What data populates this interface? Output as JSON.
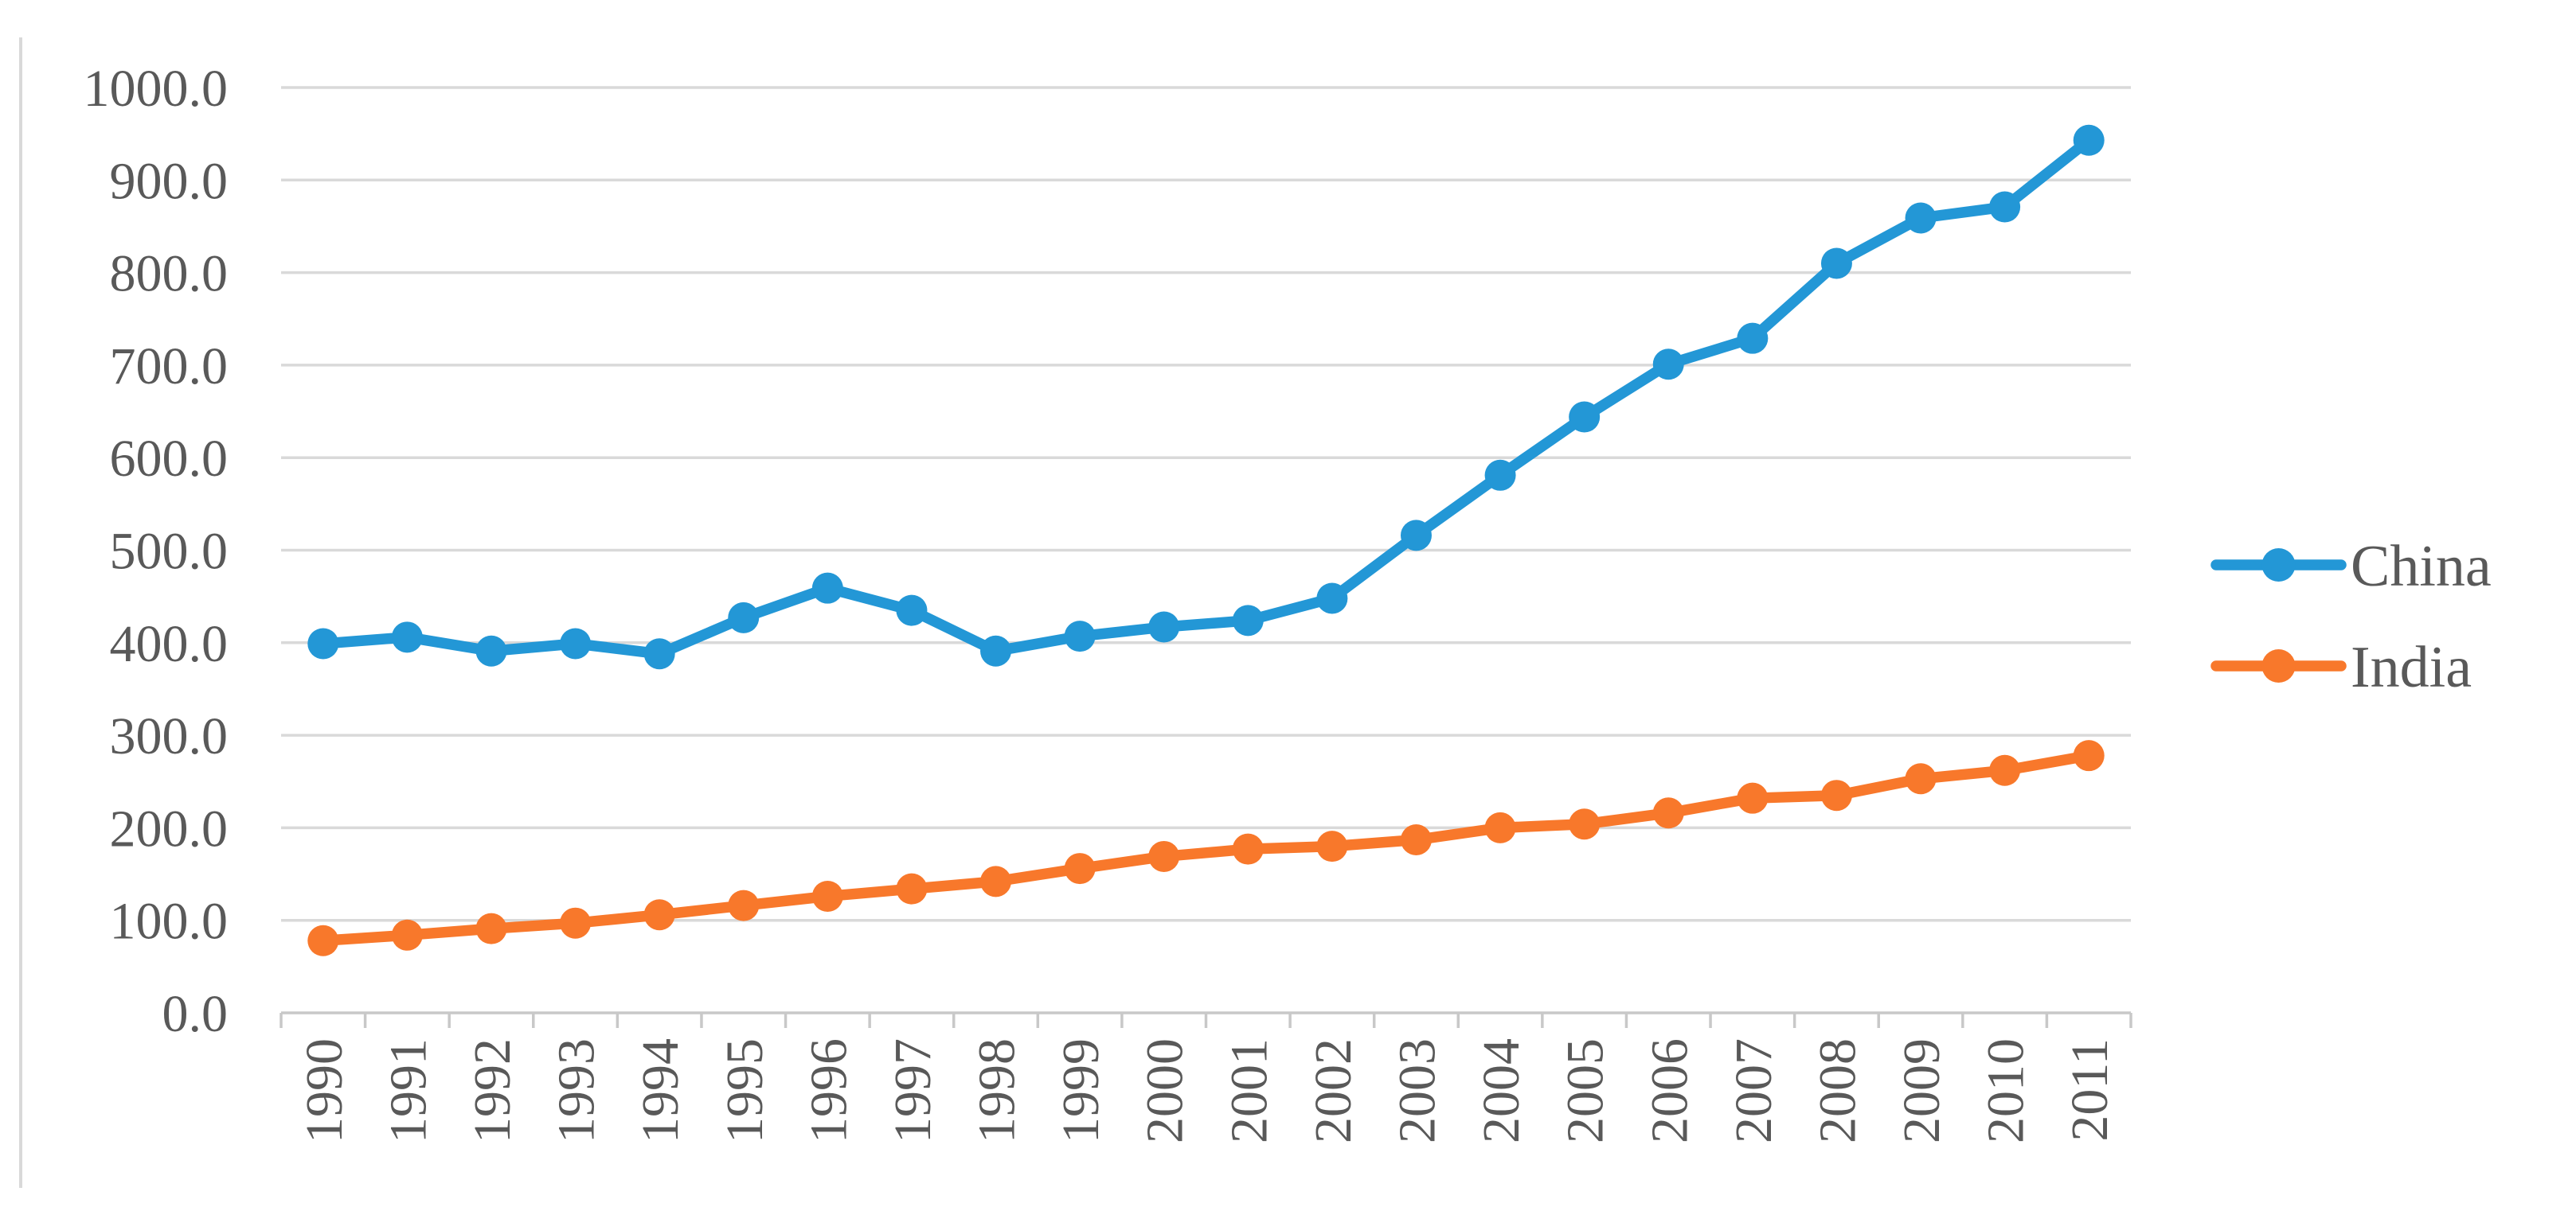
{
  "chart_data": {
    "type": "line",
    "categories": [
      "1990",
      "1991",
      "1992",
      "1993",
      "1994",
      "1995",
      "1996",
      "1997",
      "1998",
      "1999",
      "2000",
      "2001",
      "2002",
      "2003",
      "2004",
      "2005",
      "2006",
      "2007",
      "2008",
      "2009",
      "2010",
      "2011"
    ],
    "series": [
      {
        "name": "China",
        "color": "#2397D6",
        "values": [
          399,
          406,
          391,
          399,
          388,
          427,
          459,
          435,
          391,
          407,
          417,
          424,
          448,
          516,
          581,
          644,
          701,
          729,
          810,
          859,
          871,
          943
        ]
      },
      {
        "name": "India",
        "color": "#F8782B",
        "values": [
          78,
          84,
          91,
          97,
          106,
          116,
          126,
          134,
          142,
          156,
          169,
          177,
          180,
          187,
          200,
          204,
          216,
          232,
          235,
          253,
          262,
          278
        ]
      }
    ],
    "title": "",
    "xlabel": "",
    "ylabel": "",
    "ylim": [
      0,
      1000
    ],
    "ytick_step": 100,
    "ytick_labels": [
      "0.0",
      "100.0",
      "200.0",
      "300.0",
      "400.0",
      "500.0",
      "600.0",
      "700.0",
      "800.0",
      "900.0",
      "1000.0"
    ],
    "grid": true,
    "legend_position": "right"
  },
  "legend": {
    "items": [
      {
        "label": "China",
        "color": "#2397D6"
      },
      {
        "label": "India",
        "color": "#F8782B"
      }
    ]
  },
  "styles": {
    "gridline_color": "#D9D9D9",
    "axis_color": "#C8C8C8",
    "tick_label_color": "#595959",
    "background_color": "#FFFFFF"
  }
}
